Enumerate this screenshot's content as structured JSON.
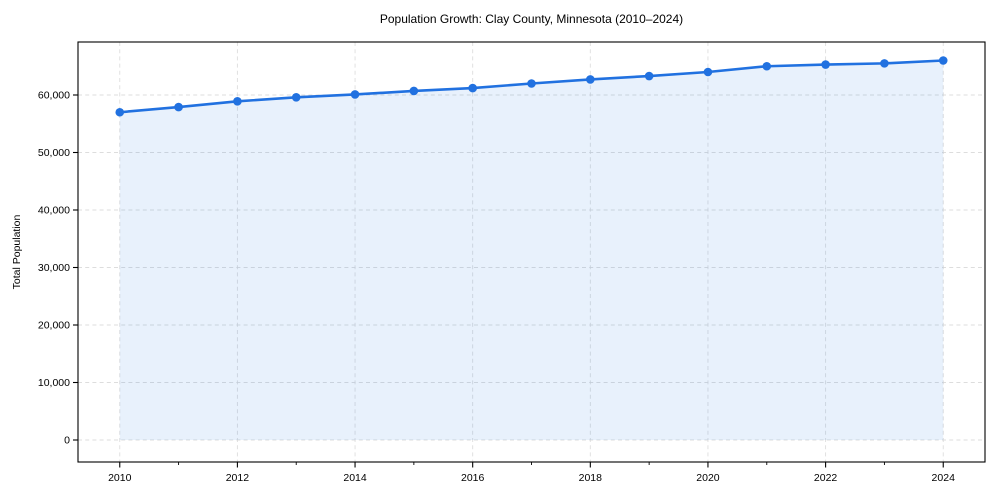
{
  "chart_data": {
    "type": "line",
    "subtype": "line-with-markers-and-area-fill",
    "title": "Population Growth: Clay County, Minnesota (2010–2024)",
    "xlabel": "",
    "ylabel": "Total Population",
    "x": [
      2010,
      2011,
      2012,
      2013,
      2014,
      2015,
      2016,
      2017,
      2018,
      2019,
      2020,
      2021,
      2022,
      2023,
      2024
    ],
    "series": [
      {
        "name": "Total Population",
        "values": [
          57000,
          57900,
          58900,
          59600,
          60100,
          60700,
          61200,
          62000,
          62700,
          63300,
          64000,
          65000,
          65300,
          65500,
          66000
        ]
      }
    ],
    "y_ticks": [
      0,
      10000,
      20000,
      30000,
      40000,
      50000,
      60000
    ],
    "y_tick_labels": [
      "0",
      "10,000",
      "20,000",
      "30,000",
      "40,000",
      "50,000",
      "60,000"
    ],
    "x_major_ticks": [
      2010,
      2012,
      2014,
      2016,
      2018,
      2020,
      2022,
      2024
    ],
    "x_minor_ticks": [
      2011,
      2013,
      2015,
      2017,
      2019,
      2021,
      2023
    ],
    "xlim": [
      2009.29,
      2024.71
    ],
    "ylim": [
      -3826,
      69217
    ],
    "grid": "dashed-on-major-ticks-both-axes",
    "legend_position": "none",
    "marker": "circle",
    "area_baseline": 0,
    "colors": {
      "line": "#2171e0",
      "marker": "#2171e0",
      "area_fill": "rgba(33,113,224,0.10)",
      "grid": "#d8d8d8",
      "spine": "#000000",
      "tick": "#000000",
      "text": "#000000",
      "background": "#ffffff"
    }
  }
}
